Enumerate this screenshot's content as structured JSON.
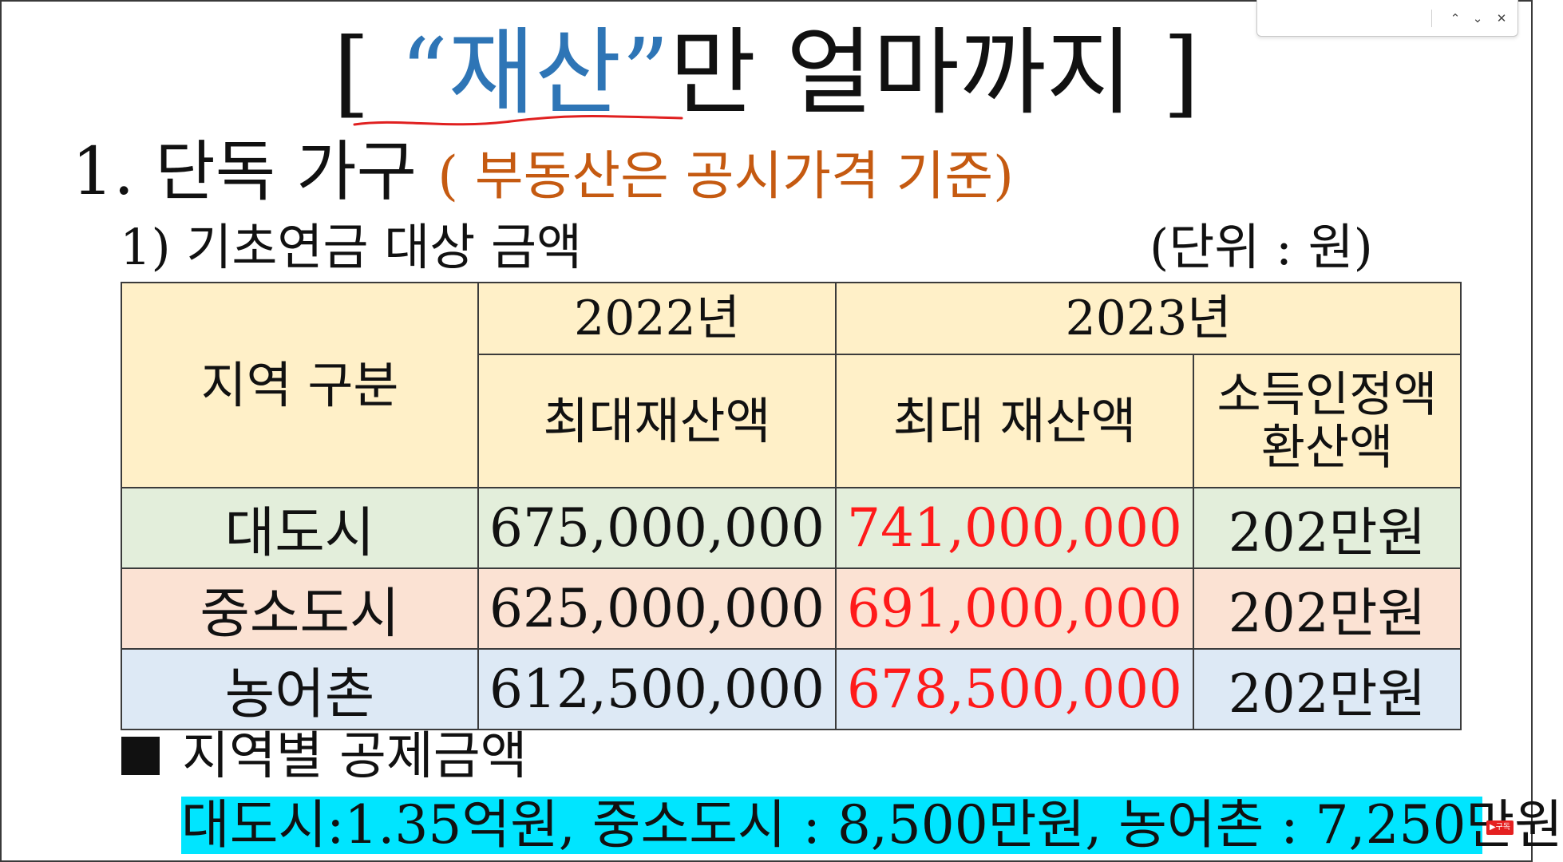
{
  "find_bar": {
    "value": "",
    "prev_icon": "chevron-up-icon",
    "prev_glyph": "⌃",
    "next_icon": "chevron-down-icon",
    "next_glyph": "⌄",
    "close_icon": "close-icon",
    "close_glyph": "✕"
  },
  "title": {
    "open_bracket": "[ ",
    "quoted": "“재산”",
    "rest": "만 얼마까지 ]"
  },
  "section": {
    "heading": "1. 단독 가구 ",
    "note": "( 부동산은 공시가격 기준)"
  },
  "sub_heading": "1) 기초연금 대상 금액",
  "unit_label": "(단위 : 원)",
  "table": {
    "region_header": "지역 구분",
    "year_2022": "2022년",
    "year_2023": "2023년",
    "max_assets_2022": "최대재산액",
    "max_assets_2023": "최대 재산액",
    "income_conversion_line1": "소득인정액",
    "income_conversion_line2": "환산액",
    "rows": [
      {
        "region": "대도시",
        "max_2022": "675,000,000",
        "max_2023": "741,000,000",
        "conversion": "202만원"
      },
      {
        "region": "중소도시",
        "max_2022": "625,000,000",
        "max_2023": "691,000,000",
        "conversion": "202만원"
      },
      {
        "region": "농어촌",
        "max_2022": "612,500,000",
        "max_2023": "678,500,000",
        "conversion": "202만원"
      }
    ]
  },
  "deduction": {
    "heading": "지역별 공제금액",
    "text": "대도시:1.35억원, 중소도시 : 8,500만원, 농어촌 : 7,250만원"
  },
  "badge": "▶구독",
  "colors": {
    "title_quote": "#2e75b6",
    "note_orange": "#c55a11",
    "header_bg": "#fff0c8",
    "row_big_bg": "#e3eedb",
    "row_mid_bg": "#fbe2d3",
    "row_rural_bg": "#dde9f5",
    "highlight_red": "#ff1a1a",
    "deduction_bg": "#00e5ff"
  }
}
